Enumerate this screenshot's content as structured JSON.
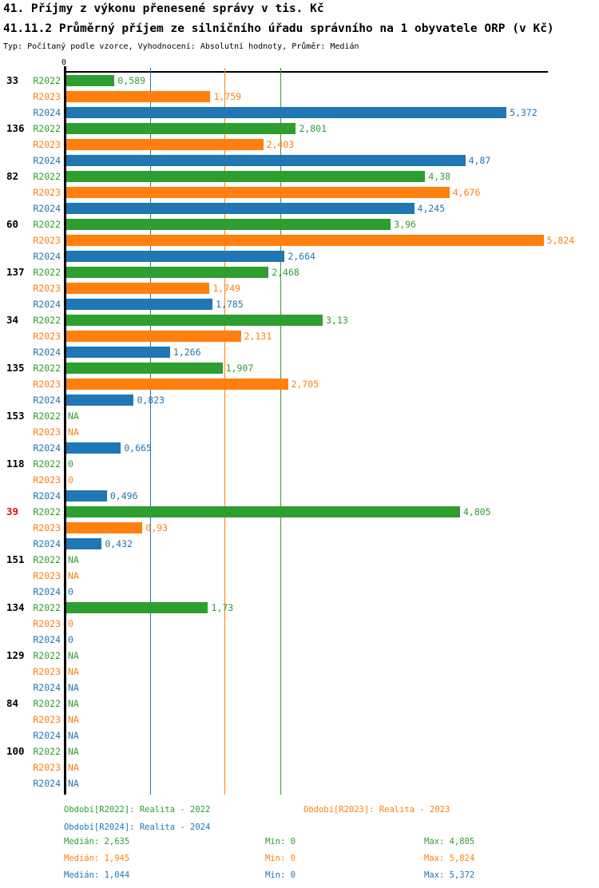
{
  "header": {
    "title": "41. Příjmy z výkonu přenesené správy v tis. Kč",
    "subtitle": "41.11.2 Průměrný příjem ze silničního úřadu správního na 1 obyvatele ORP (v Kč)",
    "meta": "Typ: Počítaný podle vzorce, Vyhodnocení: Absolutní hodnoty, Průměr: Medián"
  },
  "colors": {
    "green": "#2e9e30",
    "orange": "#ff800e",
    "blue": "#2176b4",
    "highlight": "#dd1111",
    "axis": "#000000"
  },
  "chart_data": {
    "type": "bar",
    "orientation": "horizontal",
    "title": "41.11.2 Průměrný příjem ze silničního úřadu správního na 1 obyvatele ORP (v Kč)",
    "xlabel": "",
    "ylabel": "",
    "xlim": [
      0,
      5.91
    ],
    "axis": {
      "zero_label": "0"
    },
    "series_meta": {
      "R2022": {
        "color": "#2e9e30",
        "period": "Realita - 2022"
      },
      "R2023": {
        "color": "#ff800e",
        "period": "Realita - 2023"
      },
      "R2024": {
        "color": "#2176b4",
        "period": "Realita - 2024"
      }
    },
    "median_lines": [
      {
        "series": "R2024",
        "value": 1.044
      },
      {
        "series": "R2023",
        "value": 1.945
      },
      {
        "series": "R2022",
        "value": 2.635
      }
    ],
    "groups": [
      {
        "id": "33",
        "highlight": false,
        "bars": [
          {
            "series": "R2022",
            "display": "0,589",
            "value": 0.589
          },
          {
            "series": "R2023",
            "display": "1,759",
            "value": 1.759
          },
          {
            "series": "R2024",
            "display": "5,372",
            "value": 5.372
          }
        ]
      },
      {
        "id": "136",
        "highlight": false,
        "bars": [
          {
            "series": "R2022",
            "display": "2,801",
            "value": 2.801
          },
          {
            "series": "R2023",
            "display": "2,403",
            "value": 2.403
          },
          {
            "series": "R2024",
            "display": "4,87",
            "value": 4.87
          }
        ]
      },
      {
        "id": "82",
        "highlight": false,
        "bars": [
          {
            "series": "R2022",
            "display": "4,38",
            "value": 4.38
          },
          {
            "series": "R2023",
            "display": "4,676",
            "value": 4.676
          },
          {
            "series": "R2024",
            "display": "4,245",
            "value": 4.245
          }
        ]
      },
      {
        "id": "60",
        "highlight": false,
        "bars": [
          {
            "series": "R2022",
            "display": "3,96",
            "value": 3.96
          },
          {
            "series": "R2023",
            "display": "5,824",
            "value": 5.824
          },
          {
            "series": "R2024",
            "display": "2,664",
            "value": 2.664
          }
        ]
      },
      {
        "id": "137",
        "highlight": false,
        "bars": [
          {
            "series": "R2022",
            "display": "2,468",
            "value": 2.468
          },
          {
            "series": "R2023",
            "display": "1,749",
            "value": 1.749
          },
          {
            "series": "R2024",
            "display": "1,785",
            "value": 1.785
          }
        ]
      },
      {
        "id": "34",
        "highlight": false,
        "bars": [
          {
            "series": "R2022",
            "display": "3,13",
            "value": 3.13
          },
          {
            "series": "R2023",
            "display": "2,131",
            "value": 2.131
          },
          {
            "series": "R2024",
            "display": "1,266",
            "value": 1.266
          }
        ]
      },
      {
        "id": "135",
        "highlight": false,
        "bars": [
          {
            "series": "R2022",
            "display": "1,907",
            "value": 1.907
          },
          {
            "series": "R2023",
            "display": "2,705",
            "value": 2.705
          },
          {
            "series": "R2024",
            "display": "0,823",
            "value": 0.823
          }
        ]
      },
      {
        "id": "153",
        "highlight": false,
        "bars": [
          {
            "series": "R2022",
            "display": "NA",
            "value": null
          },
          {
            "series": "R2023",
            "display": "NA",
            "value": null
          },
          {
            "series": "R2024",
            "display": "0,665",
            "value": 0.665
          }
        ]
      },
      {
        "id": "118",
        "highlight": false,
        "bars": [
          {
            "series": "R2022",
            "display": "0",
            "value": 0
          },
          {
            "series": "R2023",
            "display": "0",
            "value": 0
          },
          {
            "series": "R2024",
            "display": "0,496",
            "value": 0.496
          }
        ]
      },
      {
        "id": "39",
        "highlight": true,
        "bars": [
          {
            "series": "R2022",
            "display": "4,805",
            "value": 4.805
          },
          {
            "series": "R2023",
            "display": "0,93",
            "value": 0.93
          },
          {
            "series": "R2024",
            "display": "0,432",
            "value": 0.432
          }
        ]
      },
      {
        "id": "151",
        "highlight": false,
        "bars": [
          {
            "series": "R2022",
            "display": "NA",
            "value": null
          },
          {
            "series": "R2023",
            "display": "NA",
            "value": null
          },
          {
            "series": "R2024",
            "display": "0",
            "value": 0
          }
        ]
      },
      {
        "id": "134",
        "highlight": false,
        "bars": [
          {
            "series": "R2022",
            "display": "1,73",
            "value": 1.73
          },
          {
            "series": "R2023",
            "display": "0",
            "value": 0
          },
          {
            "series": "R2024",
            "display": "0",
            "value": 0
          }
        ]
      },
      {
        "id": "129",
        "highlight": false,
        "bars": [
          {
            "series": "R2022",
            "display": "NA",
            "value": null
          },
          {
            "series": "R2023",
            "display": "NA",
            "value": null
          },
          {
            "series": "R2024",
            "display": "NA",
            "value": null
          }
        ]
      },
      {
        "id": "84",
        "highlight": false,
        "bars": [
          {
            "series": "R2022",
            "display": "NA",
            "value": null
          },
          {
            "series": "R2023",
            "display": "NA",
            "value": null
          },
          {
            "series": "R2024",
            "display": "NA",
            "value": null
          }
        ]
      },
      {
        "id": "100",
        "highlight": false,
        "bars": [
          {
            "series": "R2022",
            "display": "NA",
            "value": null
          },
          {
            "series": "R2023",
            "display": "NA",
            "value": null
          },
          {
            "series": "R2024",
            "display": "NA",
            "value": null
          }
        ]
      }
    ]
  },
  "legend": {
    "periods": [
      {
        "series": "R2022",
        "label": "Období[R2022]: Realita - 2022"
      },
      {
        "series": "R2023",
        "label": "Období[R2023]: Realita - 2023"
      },
      {
        "series": "R2024",
        "label": "Období[R2024]: Realita - 2024"
      }
    ],
    "stats": [
      {
        "series": "R2022",
        "median": "Medián: 2,635",
        "min": "Min: 0",
        "max": "Max: 4,805"
      },
      {
        "series": "R2023",
        "median": "Medián: 1,945",
        "min": "Min: 0",
        "max": "Max: 5,824"
      },
      {
        "series": "R2024",
        "median": "Medián: 1,044",
        "min": "Min: 0",
        "max": "Max: 5,372"
      }
    ]
  }
}
